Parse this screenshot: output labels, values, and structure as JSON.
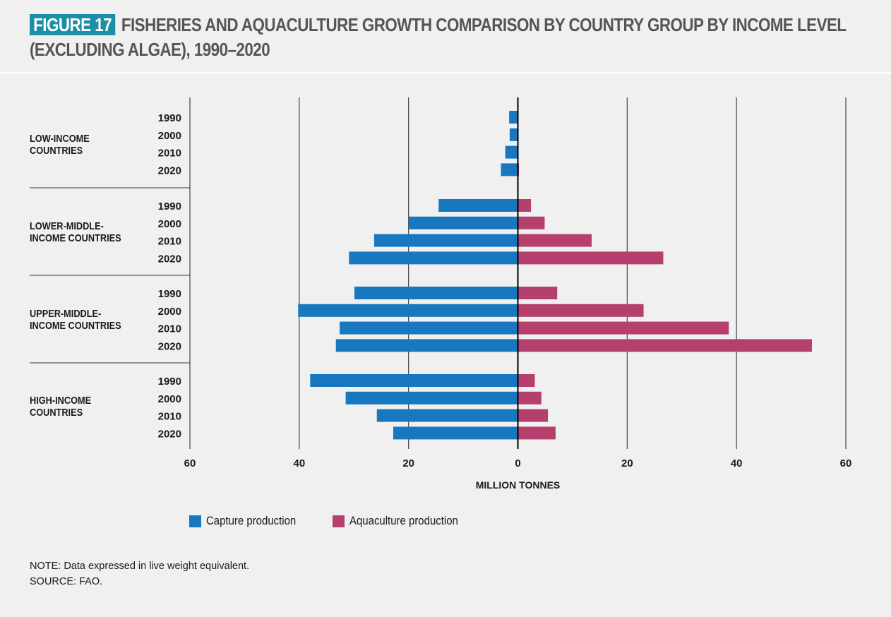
{
  "figure": {
    "badge": "FIGURE 17",
    "title_line1": "FISHERIES AND AQUACULTURE GROWTH COMPARISON BY COUNTRY GROUP BY INCOME LEVEL",
    "title_line2": "(EXCLUDING ALGAE), 1990–2020"
  },
  "groups": [
    {
      "line1": "LOW-INCOME",
      "line2": "COUNTRIES"
    },
    {
      "line1": "LOWER-MIDDLE-",
      "line2": "INCOME COUNTRIES"
    },
    {
      "line1": "UPPER-MIDDLE-",
      "line2": "INCOME COUNTRIES"
    },
    {
      "line1": "HIGH-INCOME",
      "line2": "COUNTRIES"
    }
  ],
  "legend": {
    "capture": "Capture production",
    "aquaculture": "Aquaculture production"
  },
  "notes": {
    "note": "NOTE: Data expressed in live weight equivalent.",
    "source": "SOURCE: FAO."
  },
  "colors": {
    "capture": "#1778c0",
    "aquaculture": "#b5406e",
    "gridline": "#444444"
  },
  "chart_data": {
    "type": "bar",
    "orientation": "horizontal-diverging",
    "xlabel": "MILLION TONNES",
    "xlim": [
      -60,
      60
    ],
    "x_ticks": [
      -60,
      -40,
      -20,
      0,
      20,
      40,
      60
    ],
    "x_tick_labels": [
      "60",
      "40",
      "20",
      "0",
      "20",
      "40",
      "60"
    ],
    "years": [
      "1990",
      "2000",
      "2010",
      "2020"
    ],
    "series": [
      {
        "name": "Capture production",
        "direction": "left",
        "values": [
          [
            1.6,
            1.5,
            2.3,
            3.1
          ],
          [
            14.5,
            20,
            26.3,
            30.9
          ],
          [
            29.9,
            40.2,
            32.6,
            33.3
          ],
          [
            38,
            31.5,
            25.8,
            22.8
          ]
        ]
      },
      {
        "name": "Aquaculture production",
        "direction": "right",
        "values": [
          [
            0.1,
            0.1,
            0.1,
            0.2
          ],
          [
            2.4,
            4.9,
            13.5,
            26.6
          ],
          [
            7.2,
            23,
            38.6,
            53.8
          ],
          [
            3.1,
            4.3,
            5.5,
            6.9
          ]
        ]
      }
    ]
  }
}
